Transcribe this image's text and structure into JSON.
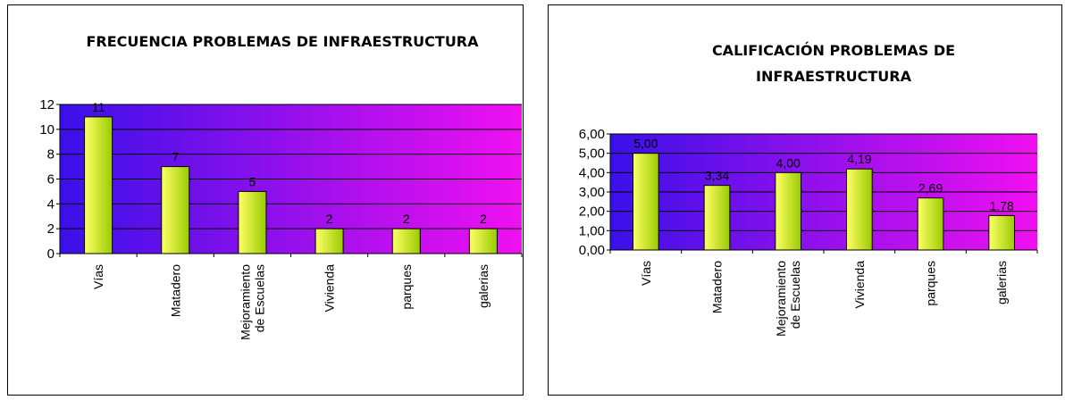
{
  "chart_data": [
    {
      "type": "bar",
      "title": [
        "FRECUENCIA PROBLEMAS DE INFRAESTRUCTURA"
      ],
      "categories": [
        [
          "Vías"
        ],
        [
          "Matadero"
        ],
        [
          "Mejoramiento",
          "de Escuelas"
        ],
        [
          "Vivienda"
        ],
        [
          "parques"
        ],
        [
          "galerias"
        ]
      ],
      "values": [
        11,
        7,
        5,
        2,
        2,
        2
      ],
      "value_labels": [
        "11",
        "7",
        "5",
        "2",
        "2",
        "2"
      ],
      "ylim": [
        0,
        12
      ],
      "yticks": [
        "0",
        "2",
        "4",
        "6",
        "8",
        "10",
        "12"
      ],
      "ytick_values": [
        0,
        2,
        4,
        6,
        8,
        10,
        12
      ],
      "grid": true,
      "legend": "none",
      "colors": {
        "plot_start": "#3a10e8",
        "plot_end": "#f010f0",
        "bar_light": "#ffff66",
        "bar_dark": "#99cc00"
      }
    },
    {
      "type": "bar",
      "title": [
        "CALIFICACIÓN PROBLEMAS DE",
        "INFRAESTRUCTURA"
      ],
      "categories": [
        [
          "Vías"
        ],
        [
          "Matadero"
        ],
        [
          "Mejoramiento",
          "de Escuelas"
        ],
        [
          "Vivienda"
        ],
        [
          "parques"
        ],
        [
          "galerias"
        ]
      ],
      "values": [
        5.0,
        3.34,
        4.0,
        4.19,
        2.69,
        1.78
      ],
      "value_labels": [
        "5,00",
        "3,34",
        "4,00",
        "4,19",
        "2,69",
        "1,78"
      ],
      "ylim": [
        0,
        6
      ],
      "yticks": [
        "0,00",
        "1,00",
        "2,00",
        "3,00",
        "4,00",
        "5,00",
        "6,00"
      ],
      "ytick_values": [
        0,
        1,
        2,
        3,
        4,
        5,
        6
      ],
      "grid": true,
      "legend": "none",
      "colors": {
        "plot_start": "#3a10e8",
        "plot_end": "#f010f0",
        "bar_light": "#ffff66",
        "bar_dark": "#99cc00"
      }
    }
  ]
}
